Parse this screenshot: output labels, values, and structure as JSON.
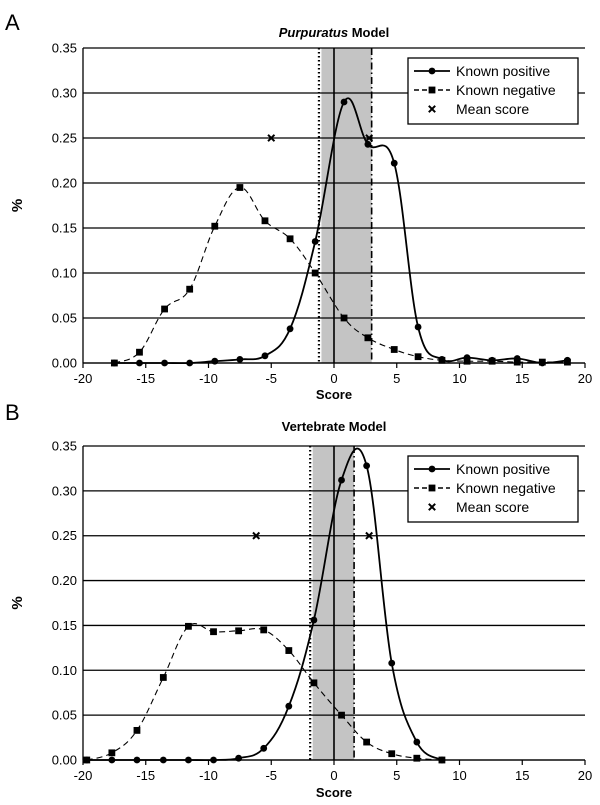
{
  "chart_data": [
    {
      "panel_label": "A",
      "type": "line",
      "title_italic": "Purpuratus",
      "title_rest": " Model",
      "xlabel": "Score",
      "ylabel": "%",
      "xlim": [
        -20,
        20
      ],
      "ylim": [
        0,
        0.35
      ],
      "x_ticks": [
        "-20",
        "-15",
        "-10",
        "-5",
        "0",
        "5",
        "10",
        "15",
        "20"
      ],
      "y_ticks": [
        "0.00",
        "0.05",
        "0.10",
        "0.15",
        "0.20",
        "0.25",
        "0.30",
        "0.35"
      ],
      "grid": "horizontal",
      "legend_position": "top-right",
      "shaded_band": [
        -1.0,
        3.0
      ],
      "dotted_line_x": -1.2,
      "dashdot_line_x": 3.0,
      "series": [
        {
          "name": "Known positive",
          "style": "solid",
          "marker": "circle",
          "x": [
            -17.5,
            -15.5,
            -13.5,
            -11.5,
            -9.5,
            -7.5,
            -5.5,
            -3.5,
            -1.5,
            0.8,
            2.7,
            4.8,
            6.7,
            8.6,
            10.6,
            12.6,
            14.6,
            16.6,
            18.6
          ],
          "y": [
            0.0,
            0.0,
            0.0,
            0.0,
            0.002,
            0.004,
            0.008,
            0.038,
            0.135,
            0.29,
            0.243,
            0.222,
            0.04,
            0.004,
            0.006,
            0.003,
            0.005,
            0.0,
            0.003
          ]
        },
        {
          "name": "Known negative",
          "style": "dashed",
          "marker": "square",
          "x": [
            -17.5,
            -15.5,
            -13.5,
            -11.5,
            -9.5,
            -7.5,
            -5.5,
            -3.5,
            -1.5,
            0.8,
            2.7,
            4.8,
            6.7,
            8.6,
            10.6,
            12.6,
            14.6,
            16.6,
            18.6
          ],
          "y": [
            0.0,
            0.012,
            0.06,
            0.082,
            0.152,
            0.195,
            0.158,
            0.138,
            0.1,
            0.05,
            0.028,
            0.015,
            0.007,
            0.003,
            0.002,
            0.002,
            0.001,
            0.001,
            0.001
          ]
        },
        {
          "name": "Mean score",
          "style": "none",
          "marker": "x",
          "x": [
            -5.0,
            2.8
          ],
          "y": [
            0.25,
            0.25
          ]
        }
      ]
    },
    {
      "panel_label": "B",
      "type": "line",
      "title_italic": "",
      "title_rest": "Vertebrate Model",
      "xlabel": "Score",
      "ylabel": "%",
      "xlim": [
        -20,
        20
      ],
      "ylim": [
        0,
        0.35
      ],
      "x_ticks": [
        "-20",
        "-15",
        "-10",
        "-5",
        "0",
        "5",
        "10",
        "15",
        "20"
      ],
      "y_ticks": [
        "0.00",
        "0.05",
        "0.10",
        "0.15",
        "0.20",
        "0.25",
        "0.30",
        "0.35"
      ],
      "grid": "horizontal",
      "legend_position": "top-right",
      "shaded_band": [
        -1.7,
        1.6
      ],
      "dotted_line_x": -1.9,
      "dashdot_line_x": 1.6,
      "series": [
        {
          "name": "Known positive",
          "style": "solid",
          "marker": "circle",
          "x": [
            -19.7,
            -17.7,
            -15.7,
            -13.6,
            -11.6,
            -9.6,
            -7.6,
            -5.6,
            -3.6,
            -1.6,
            0.6,
            2.6,
            4.6,
            6.6,
            8.6
          ],
          "y": [
            0.0,
            0.0,
            0.0,
            0.0,
            0.0,
            0.0,
            0.002,
            0.013,
            0.06,
            0.156,
            0.312,
            0.328,
            0.108,
            0.02,
            0.0
          ]
        },
        {
          "name": "Known negative",
          "style": "dashed",
          "marker": "square",
          "x": [
            -19.7,
            -17.7,
            -15.7,
            -13.6,
            -11.6,
            -9.6,
            -7.6,
            -5.6,
            -3.6,
            -1.6,
            0.6,
            2.6,
            4.6,
            6.6,
            8.6
          ],
          "y": [
            0.0,
            0.008,
            0.033,
            0.092,
            0.149,
            0.143,
            0.144,
            0.145,
            0.122,
            0.086,
            0.05,
            0.02,
            0.007,
            0.002,
            0.0
          ]
        },
        {
          "name": "Mean score",
          "style": "none",
          "marker": "x",
          "x": [
            -6.2,
            2.8
          ],
          "y": [
            0.25,
            0.25
          ]
        }
      ]
    }
  ]
}
